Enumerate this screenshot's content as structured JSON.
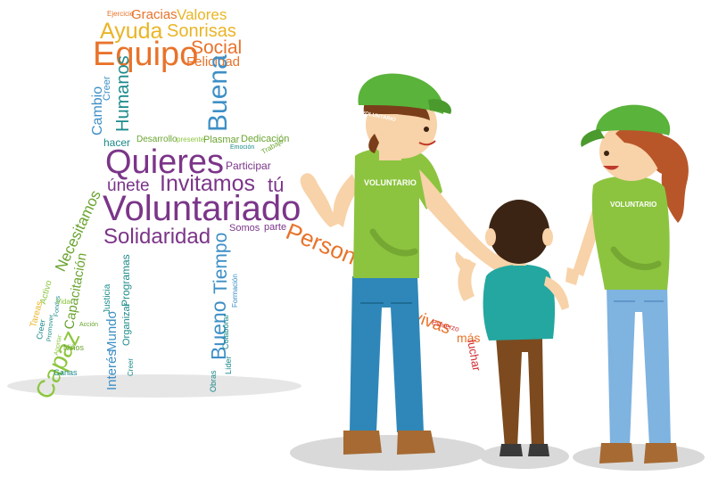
{
  "colors": {
    "orange": "#e8732a",
    "yellow": "#e9b526",
    "purple": "#7b3589",
    "green": "#6aa430",
    "lime": "#8dc63f",
    "blue": "#3d8fc6",
    "teal": "#1d8a8a",
    "red": "#d2292e",
    "shirt_green": "#8cc43f",
    "hat_green": "#5ab33a",
    "jeans_blue": "#2e87b8",
    "light_jeans": "#7fb3e0",
    "boy_shirt": "#23a7a0",
    "boy_pants": "#7c4a1e",
    "skin": "#f8d2a8",
    "hair_brown": "#7a3e1a",
    "hair_dark": "#3b2414",
    "hair_girl": "#b8562a",
    "shoe_brown": "#a66a32"
  },
  "word_cloud": {
    "ejercicio": "Ejercicio",
    "gracias": "Gracias",
    "valores": "Valores",
    "ayuda": "Ayuda",
    "sonrisas": "Sonrisas",
    "equipo": "Equipo",
    "social": "Social",
    "felicidad": "Felicidad",
    "creer_top": "Creer",
    "cambio": "Cambio",
    "humanos": "Humanos",
    "buena": "Buena",
    "hacer": "hacer",
    "desarrollo": "Desarrollo",
    "presente": "presente",
    "plasmar": "Plasmar",
    "dedicacion": "Dedicación",
    "trabajo": "Trabajo",
    "emocion": "Emoción",
    "quieres": "Quieres",
    "participar": "Participar",
    "unete": "únete",
    "invitamos": "Invitamos",
    "tu": "tú",
    "voluntariado": "Voluntariado",
    "solidaridad": "Solidaridad",
    "somos": "Somos",
    "parte": "parte",
    "persona": "Persona",
    "necesitamos": "Necesitamos",
    "capacitacion": "Capacitación",
    "programas": "Programas",
    "justicia": "Justicia",
    "organizar": "Organizar",
    "mundo": "Mundo",
    "interes": "Interés",
    "creer_mid": "Creer",
    "tiempo": "Tiempo",
    "bueno": "Bueno",
    "formacion": "Formación",
    "colaborar": "Colaborar",
    "lider": "Líder",
    "obras": "Obras",
    "tareas": "Tareas",
    "activo": "Activo",
    "creer_low": "Creer",
    "promover": "Promover",
    "fondos": "Fondos",
    "vida": "Vida",
    "accion": "Acción",
    "capaz": "Capaz",
    "aportar": "Aportar",
    "ninos": "Niños",
    "ganas": "Ganas",
    "vivas": "vivas",
    "esfuerzo": "Esfuerzo",
    "mas": "más",
    "luchar": "luchar"
  },
  "people": {
    "man_shirt": "VOLUNTARIO",
    "man_hat": "VOLUNTARIO",
    "woman_shirt": "VOLUNTARIO"
  }
}
